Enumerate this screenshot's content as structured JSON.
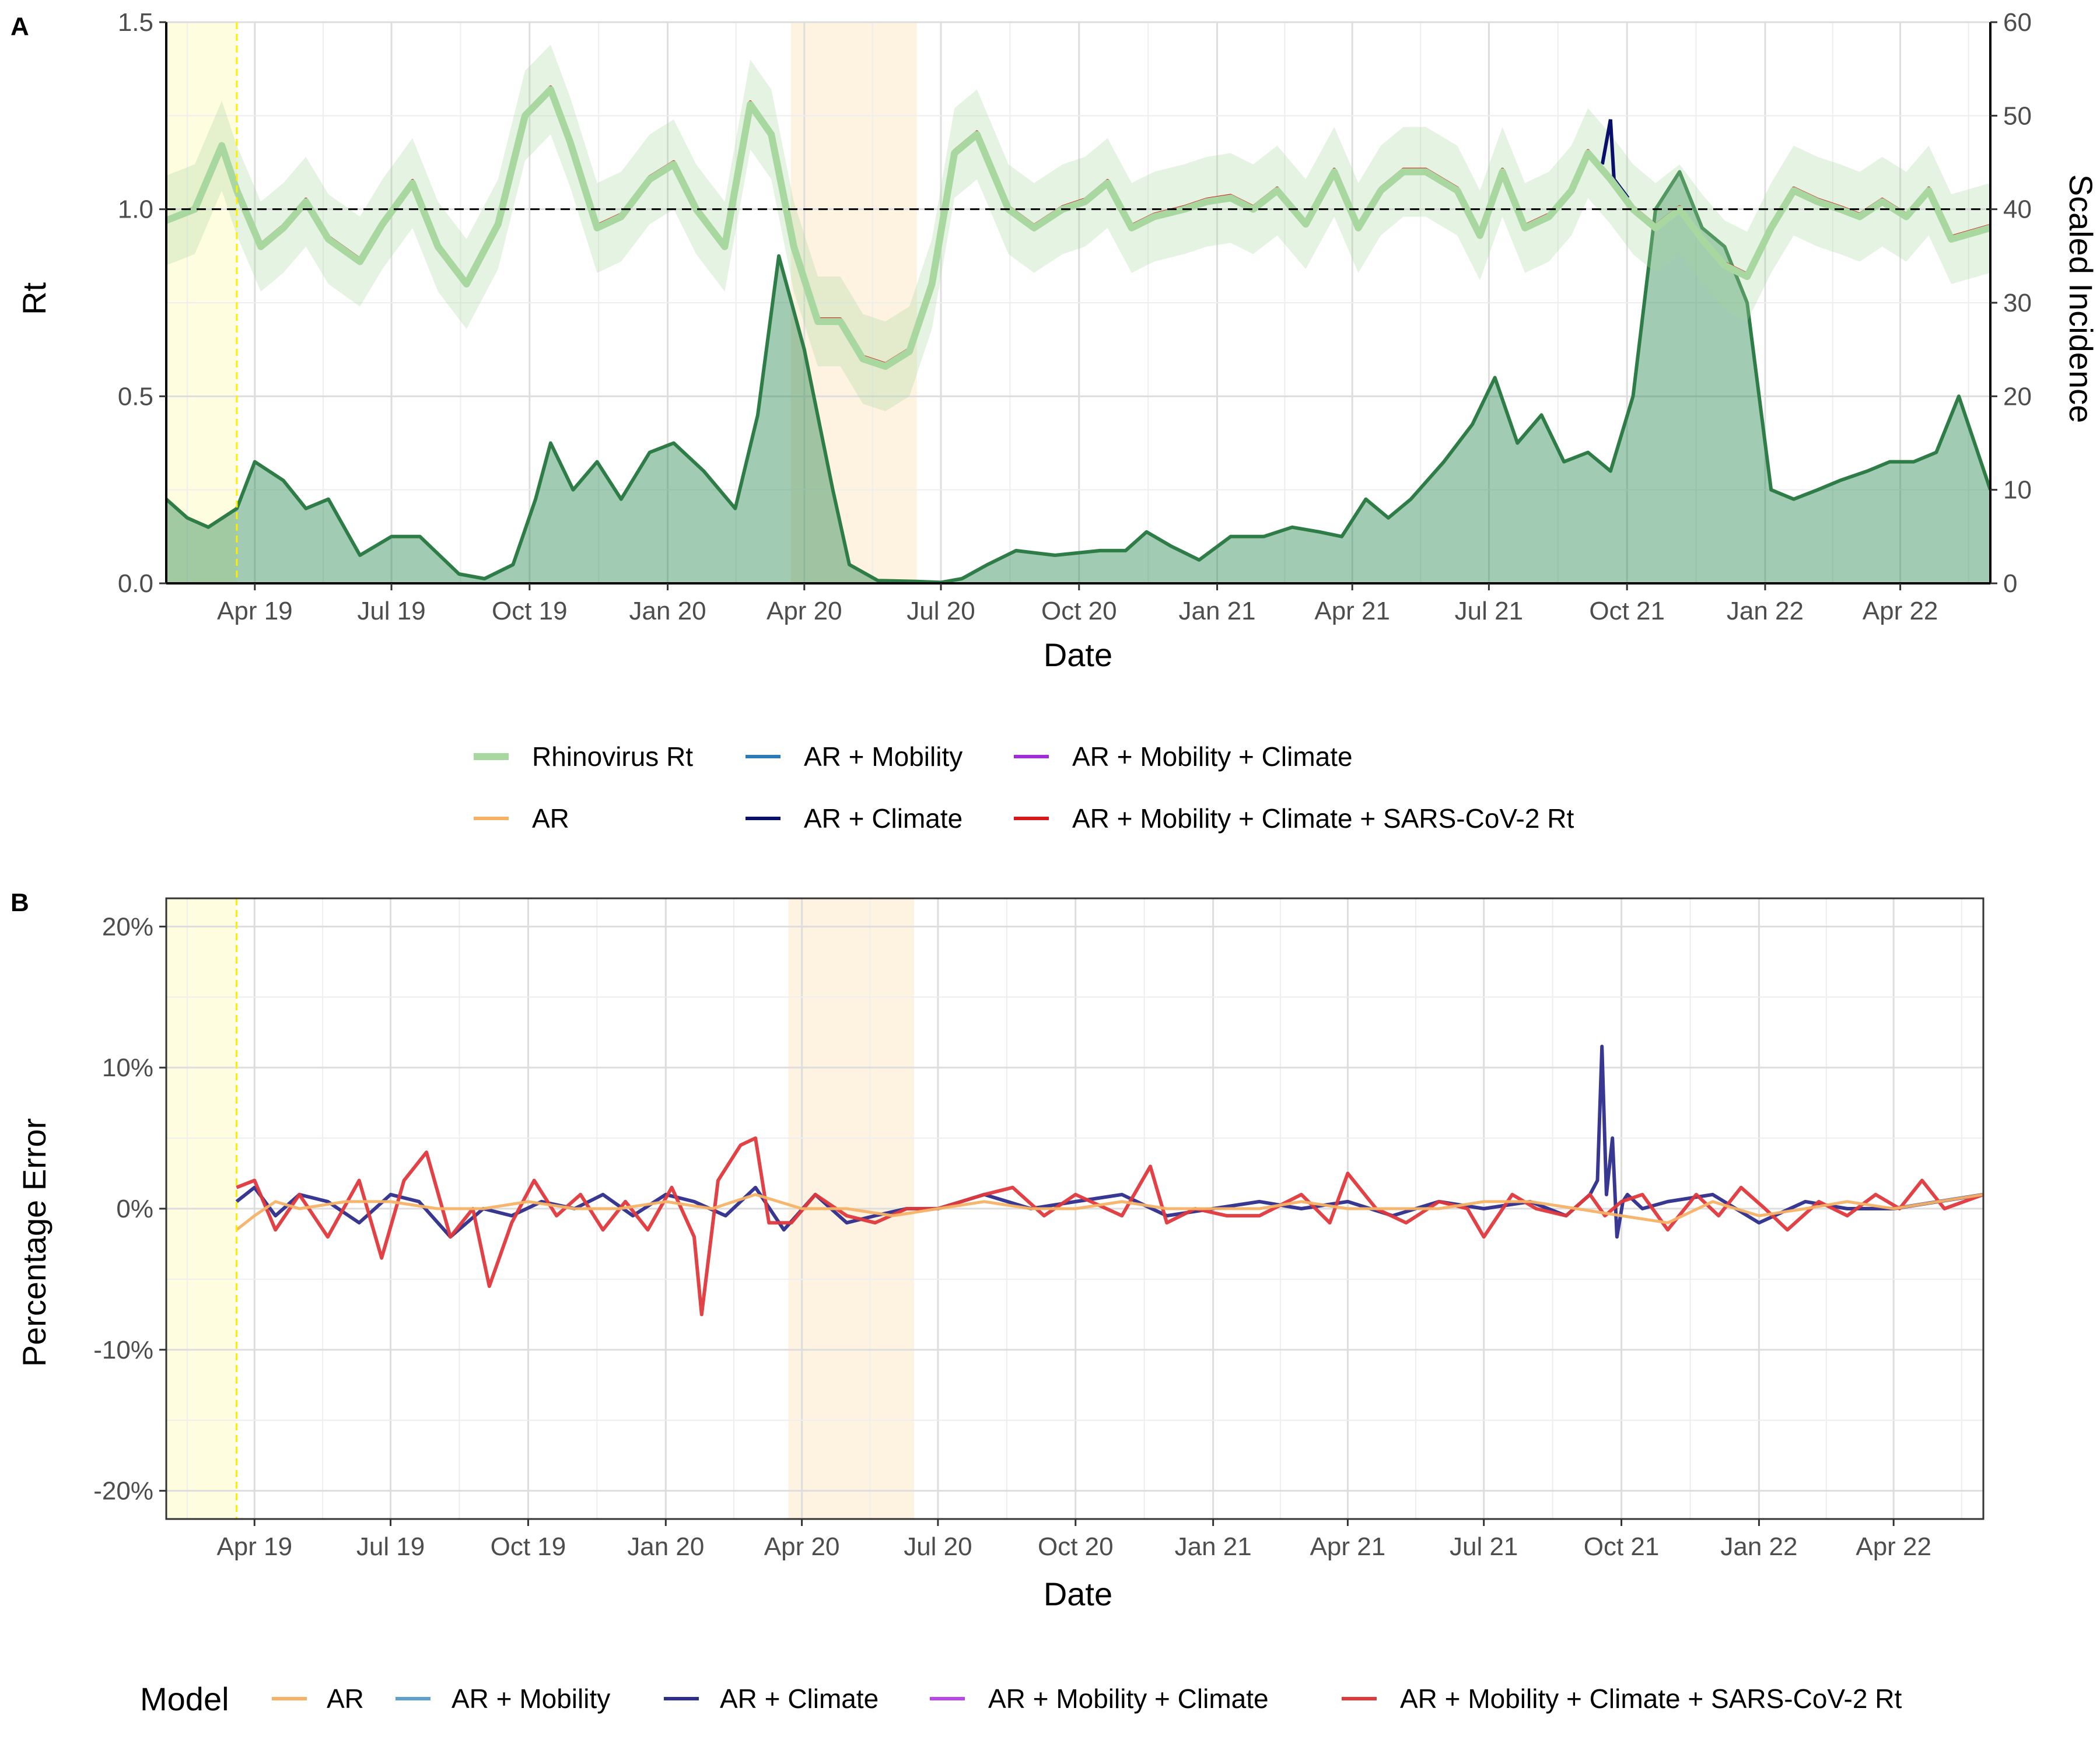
{
  "chart_data": [
    {
      "panel": "A",
      "type": "line",
      "xlabel": "Date",
      "ylabel": "Rt",
      "y2label": "Scaled Incidence",
      "x_ticks": [
        "Apr 19",
        "Jul 19",
        "Oct 19",
        "Jan 20",
        "Apr 20",
        "Jul 20",
        "Oct 20",
        "Jan 21",
        "Apr 21",
        "Jul 21",
        "Oct 21",
        "Jan 22",
        "Apr 22"
      ],
      "x_tick_dates": [
        "2019-04-01",
        "2019-07-01",
        "2019-10-01",
        "2020-01-01",
        "2020-04-01",
        "2020-07-01",
        "2020-10-01",
        "2021-01-01",
        "2021-04-01",
        "2021-07-01",
        "2021-10-01",
        "2022-01-01",
        "2022-04-01"
      ],
      "xlim": [
        "2019-02-01",
        "2022-05-31"
      ],
      "ylim": [
        0,
        1.5
      ],
      "y_ticks": [
        "0.0",
        "0.5",
        "1.0",
        "1.5"
      ],
      "y2lim": [
        0,
        60
      ],
      "y2_ticks": [
        "0",
        "10",
        "20",
        "30",
        "40",
        "50",
        "60"
      ],
      "reference_line_y": 1.0,
      "training_end_date": "2019-03-20",
      "shaded_periods": [
        {
          "start": "2019-02-01",
          "end": "2019-03-20",
          "color": "#fffde0"
        },
        {
          "start": "2020-03-23",
          "end": "2020-06-15",
          "color": "#fef3e0"
        }
      ],
      "legend_position": "bottom",
      "legend": [
        {
          "label": "Rhinovirus Rt",
          "color": "#a8d8a0"
        },
        {
          "label": "AR",
          "color": "#f5b266"
        },
        {
          "label": "AR + Mobility",
          "color": "#2c7bb6"
        },
        {
          "label": "AR + Climate",
          "color": "#08106b"
        },
        {
          "label": "AR + Mobility + Climate",
          "color": "#a02ed6"
        },
        {
          "label": "AR + Mobility + Climate + SARS-CoV-2 Rt",
          "color": "#d7191c"
        }
      ],
      "rt_series": {
        "name": "Rhinovirus Rt",
        "dates": [
          "2019-02-01",
          "2019-02-20",
          "2019-03-10",
          "2019-03-20",
          "2019-04-05",
          "2019-04-20",
          "2019-05-05",
          "2019-05-20",
          "2019-06-10",
          "2019-06-25",
          "2019-07-15",
          "2019-08-01",
          "2019-08-20",
          "2019-09-10",
          "2019-09-28",
          "2019-10-15",
          "2019-10-28",
          "2019-11-15",
          "2019-12-01",
          "2019-12-20",
          "2020-01-05",
          "2020-01-20",
          "2020-02-08",
          "2020-02-25",
          "2020-03-10",
          "2020-03-25",
          "2020-04-10",
          "2020-04-25",
          "2020-05-10",
          "2020-05-25",
          "2020-06-10",
          "2020-06-25",
          "2020-07-10",
          "2020-07-25",
          "2020-08-15",
          "2020-09-01",
          "2020-09-20",
          "2020-10-05",
          "2020-10-20",
          "2020-11-05",
          "2020-11-20",
          "2020-12-10",
          "2020-12-25",
          "2021-01-10",
          "2021-01-25",
          "2021-02-10",
          "2021-03-01",
          "2021-03-20",
          "2021-04-05",
          "2021-04-20",
          "2021-05-05",
          "2021-05-20",
          "2021-06-10",
          "2021-06-25",
          "2021-07-10",
          "2021-07-25",
          "2021-08-10",
          "2021-08-25",
          "2021-09-05",
          "2021-09-20",
          "2021-10-05",
          "2021-10-20",
          "2021-11-05",
          "2021-11-20",
          "2021-12-05",
          "2021-12-20",
          "2022-01-05",
          "2022-01-20",
          "2022-02-05",
          "2022-02-20",
          "2022-03-05",
          "2022-03-20",
          "2022-04-05",
          "2022-04-20",
          "2022-05-05",
          "2022-05-31"
        ],
        "values": [
          0.97,
          1.0,
          1.17,
          1.05,
          0.9,
          0.95,
          1.02,
          0.92,
          0.86,
          0.96,
          1.07,
          0.9,
          0.8,
          0.96,
          1.25,
          1.32,
          1.18,
          0.95,
          0.98,
          1.08,
          1.12,
          1.0,
          0.9,
          1.28,
          1.2,
          0.9,
          0.7,
          0.7,
          0.6,
          0.58,
          0.62,
          0.8,
          1.15,
          1.2,
          1.0,
          0.95,
          1.0,
          1.02,
          1.07,
          0.95,
          0.98,
          1.0,
          1.02,
          1.03,
          1.0,
          1.05,
          0.96,
          1.1,
          0.95,
          1.05,
          1.1,
          1.1,
          1.05,
          0.93,
          1.1,
          0.95,
          0.98,
          1.05,
          1.15,
          1.08,
          1.0,
          0.95,
          1.0,
          0.92,
          0.85,
          0.82,
          0.95,
          1.05,
          1.02,
          1.0,
          0.98,
          1.02,
          0.98,
          1.05,
          0.92,
          0.95
        ],
        "ci_half_width": 0.12
      },
      "incidence_series": {
        "name": "Scaled Incidence",
        "dates": [
          "2019-02-01",
          "2019-02-15",
          "2019-03-01",
          "2019-03-20",
          "2019-04-01",
          "2019-04-20",
          "2019-05-05",
          "2019-05-20",
          "2019-06-10",
          "2019-07-01",
          "2019-07-20",
          "2019-08-15",
          "2019-09-01",
          "2019-09-20",
          "2019-10-05",
          "2019-10-15",
          "2019-10-30",
          "2019-11-15",
          "2019-12-01",
          "2019-12-20",
          "2020-01-05",
          "2020-01-25",
          "2020-02-15",
          "2020-03-01",
          "2020-03-15",
          "2020-04-01",
          "2020-04-20",
          "2020-05-01",
          "2020-05-20",
          "2020-06-15",
          "2020-07-01",
          "2020-07-15",
          "2020-08-01",
          "2020-08-20",
          "2020-09-15",
          "2020-10-15",
          "2020-11-01",
          "2020-11-15",
          "2020-12-01",
          "2020-12-20",
          "2021-01-10",
          "2021-02-01",
          "2021-02-20",
          "2021-03-10",
          "2021-03-25",
          "2021-04-10",
          "2021-04-25",
          "2021-05-10",
          "2021-06-01",
          "2021-06-20",
          "2021-07-05",
          "2021-07-20",
          "2021-08-05",
          "2021-08-20",
          "2021-09-05",
          "2021-09-20",
          "2021-10-05",
          "2021-10-20",
          "2021-11-05",
          "2021-11-20",
          "2021-12-05",
          "2021-12-20",
          "2022-01-05",
          "2022-01-20",
          "2022-02-05",
          "2022-02-20",
          "2022-03-10",
          "2022-03-25",
          "2022-04-10",
          "2022-04-25",
          "2022-05-10",
          "2022-05-31"
        ],
        "values": [
          9,
          7,
          6,
          8,
          13,
          11,
          8,
          9,
          3,
          5,
          5,
          1,
          0.5,
          2,
          9,
          15,
          10,
          13,
          9,
          14,
          15,
          12,
          8,
          18,
          35,
          25,
          10,
          2,
          0.3,
          0.2,
          0.1,
          0.5,
          2,
          3.5,
          3,
          3.5,
          3.5,
          5.5,
          4,
          2.5,
          5,
          5,
          6,
          5.5,
          5,
          9,
          7,
          9,
          13,
          17,
          22,
          15,
          18,
          13,
          14,
          12,
          20,
          40,
          44,
          38,
          36,
          30,
          10,
          9,
          10,
          11,
          12,
          13,
          13,
          14,
          20,
          10
        ]
      },
      "ar_error_visible": {
        "name": "AR + Climate",
        "spike_date": "2021-09-20",
        "peak_rt": 1.24
      }
    },
    {
      "panel": "B",
      "type": "line",
      "xlabel": "Date",
      "ylabel": "Percentage Error",
      "x_ticks": [
        "Apr 19",
        "Jul 19",
        "Oct 19",
        "Jan 20",
        "Apr 20",
        "Jul 20",
        "Oct 20",
        "Jan 21",
        "Apr 21",
        "Jul 21",
        "Oct 21",
        "Jan 22",
        "Apr 22"
      ],
      "x_tick_dates": [
        "2019-04-01",
        "2019-07-01",
        "2019-10-01",
        "2020-01-01",
        "2020-04-01",
        "2020-07-01",
        "2020-10-01",
        "2021-01-01",
        "2021-04-01",
        "2021-07-01",
        "2021-10-01",
        "2022-01-01",
        "2022-04-01"
      ],
      "xlim": [
        "2019-02-01",
        "2022-05-31"
      ],
      "ylim": [
        -22,
        22
      ],
      "y_ticks": [
        "-20%",
        "-10%",
        "0%",
        "10%",
        "20%"
      ],
      "y_tick_values": [
        -20,
        -10,
        0,
        10,
        20
      ],
      "legend_position": "bottom",
      "legend_title": "Model",
      "legend": [
        {
          "label": "AR",
          "color": "#f5b266"
        },
        {
          "label": "AR + Mobility",
          "color": "#5da0c9"
        },
        {
          "label": "AR + Climate",
          "color": "#2d2d8c"
        },
        {
          "label": "AR + Mobility + Climate",
          "color": "#b847e6"
        },
        {
          "label": "AR + Mobility + Climate + SARS-CoV-2 Rt",
          "color": "#e0383b"
        }
      ],
      "series": [
        {
          "name": "AR + Climate",
          "dates": [
            "2019-03-20",
            "2019-04-01",
            "2019-04-15",
            "2019-05-01",
            "2019-05-20",
            "2019-06-10",
            "2019-07-01",
            "2019-07-20",
            "2019-08-10",
            "2019-09-01",
            "2019-09-20",
            "2019-10-10",
            "2019-11-01",
            "2019-11-20",
            "2019-12-10",
            "2020-01-01",
            "2020-01-20",
            "2020-02-10",
            "2020-03-01",
            "2020-03-20",
            "2020-04-10",
            "2020-05-01",
            "2020-05-20",
            "2020-06-10",
            "2020-07-01",
            "2020-08-01",
            "2020-09-01",
            "2020-10-01",
            "2020-11-01",
            "2020-12-01",
            "2021-01-01",
            "2021-02-01",
            "2021-03-01",
            "2021-04-01",
            "2021-05-01",
            "2021-06-01",
            "2021-07-01",
            "2021-08-01",
            "2021-08-25",
            "2021-09-10",
            "2021-09-15",
            "2021-09-18",
            "2021-09-21",
            "2021-09-25",
            "2021-09-28",
            "2021-10-02",
            "2021-10-05",
            "2021-10-15",
            "2021-11-01",
            "2021-12-01",
            "2022-01-01",
            "2022-02-01",
            "2022-03-01",
            "2022-04-01",
            "2022-05-01",
            "2022-05-31"
          ],
          "values": [
            0.5,
            1.5,
            -0.5,
            1,
            0.5,
            -1,
            1,
            0.5,
            -2,
            0,
            -0.5,
            0.5,
            0,
            1,
            -0.5,
            1,
            0.5,
            -0.5,
            1.5,
            -1.5,
            1,
            -1,
            -0.5,
            0,
            0,
            1,
            0,
            0.5,
            1,
            -0.5,
            0,
            0.5,
            0,
            0.5,
            -0.5,
            0.5,
            0,
            0.5,
            -0.5,
            1,
            2,
            11.5,
            1,
            5,
            -2,
            0.5,
            1,
            0,
            0.5,
            1,
            -1,
            0.5,
            0,
            0,
            0.5,
            1
          ]
        },
        {
          "name": "AR + Mobility + Climate + SARS-CoV-2 Rt",
          "dates": [
            "2019-03-20",
            "2019-04-01",
            "2019-04-15",
            "2019-05-01",
            "2019-05-20",
            "2019-06-10",
            "2019-06-25",
            "2019-07-10",
            "2019-07-25",
            "2019-08-10",
            "2019-08-25",
            "2019-09-05",
            "2019-09-20",
            "2019-10-05",
            "2019-10-20",
            "2019-11-05",
            "2019-11-20",
            "2019-12-05",
            "2019-12-20",
            "2020-01-05",
            "2020-01-20",
            "2020-01-25",
            "2020-02-05",
            "2020-02-20",
            "2020-03-01",
            "2020-03-10",
            "2020-03-25",
            "2020-04-10",
            "2020-05-01",
            "2020-05-20",
            "2020-06-10",
            "2020-07-01",
            "2020-08-01",
            "2020-08-20",
            "2020-09-10",
            "2020-10-01",
            "2020-11-01",
            "2020-11-20",
            "2020-12-01",
            "2020-12-20",
            "2021-01-10",
            "2021-02-01",
            "2021-03-01",
            "2021-03-20",
            "2021-04-01",
            "2021-04-20",
            "2021-05-10",
            "2021-06-01",
            "2021-06-20",
            "2021-07-01",
            "2021-07-20",
            "2021-08-05",
            "2021-08-25",
            "2021-09-10",
            "2021-09-20",
            "2021-10-01",
            "2021-10-15",
            "2021-11-01",
            "2021-11-20",
            "2021-12-05",
            "2021-12-20",
            "2022-01-05",
            "2022-01-20",
            "2022-02-10",
            "2022-03-01",
            "2022-03-20",
            "2022-04-05",
            "2022-04-20",
            "2022-05-05",
            "2022-05-31"
          ],
          "values": [
            1.5,
            2,
            -1.5,
            1,
            -2,
            2,
            -3.5,
            2,
            4,
            -2,
            0,
            -5.5,
            -1,
            2,
            -0.5,
            1,
            -1.5,
            0.5,
            -1.5,
            1.5,
            -2,
            -7.5,
            2,
            4.5,
            5,
            -1,
            -1,
            1,
            -0.5,
            -1,
            0,
            0,
            1,
            1.5,
            -0.5,
            1,
            -0.5,
            3,
            -1,
            0,
            -0.5,
            -0.5,
            1,
            -1,
            2.5,
            0,
            -1,
            0.5,
            0,
            -2,
            1,
            0,
            -0.5,
            1,
            -0.5,
            0.5,
            1,
            -1.5,
            1,
            -0.5,
            1.5,
            0,
            -1.5,
            0.5,
            -0.5,
            1,
            0,
            2,
            0,
            1
          ]
        },
        {
          "name": "AR",
          "dates": [
            "2019-03-20",
            "2019-04-01",
            "2019-04-15",
            "2019-05-01",
            "2019-06-01",
            "2019-07-01",
            "2019-08-01",
            "2019-09-01",
            "2019-10-01",
            "2019-11-01",
            "2019-12-01",
            "2020-01-01",
            "2020-02-01",
            "2020-03-01",
            "2020-04-01",
            "2020-05-01",
            "2020-06-01",
            "2020-07-01",
            "2020-08-01",
            "2020-09-01",
            "2020-10-01",
            "2020-11-01",
            "2020-12-01",
            "2021-01-01",
            "2021-02-01",
            "2021-03-01",
            "2021-04-01",
            "2021-05-01",
            "2021-06-01",
            "2021-07-01",
            "2021-08-01",
            "2021-09-01",
            "2021-10-01",
            "2021-11-01",
            "2021-12-01",
            "2022-01-01",
            "2022-02-01",
            "2022-03-01",
            "2022-04-01",
            "2022-05-01",
            "2022-05-31"
          ],
          "values": [
            -1.5,
            -0.5,
            0.5,
            0,
            0.5,
            0.5,
            0,
            0,
            0.5,
            0,
            0,
            0.5,
            0,
            1,
            0,
            0,
            -0.5,
            0,
            0.5,
            0,
            0,
            0.5,
            0,
            0,
            0,
            0.5,
            0,
            0,
            0,
            0.5,
            0.5,
            0,
            -0.5,
            -1,
            0.5,
            -0.5,
            0,
            0.5,
            0,
            0.5,
            1
          ]
        }
      ]
    }
  ]
}
